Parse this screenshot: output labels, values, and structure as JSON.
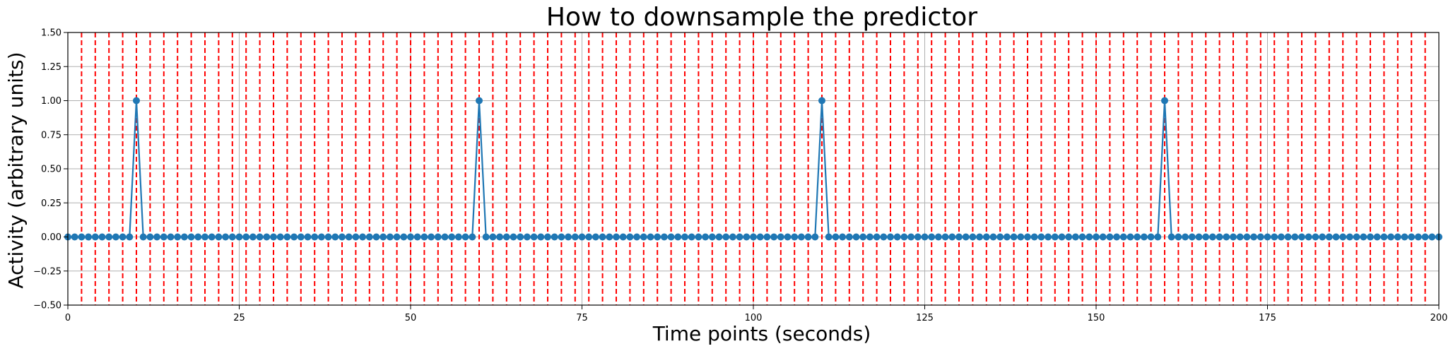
{
  "chart_data": {
    "type": "line",
    "title": "How to downsample the predictor",
    "xlabel": "Time points (seconds)",
    "ylabel": "Activity (arbitrary units)",
    "xlim": [
      0,
      200
    ],
    "ylim": [
      -0.5,
      1.5
    ],
    "x_ticks": [
      "0",
      "25",
      "50",
      "75",
      "100",
      "125",
      "150",
      "175",
      "200"
    ],
    "y_ticks": [
      "−0.50",
      "−0.25",
      "0.00",
      "0.25",
      "0.50",
      "0.75",
      "1.00",
      "1.25",
      "1.50"
    ],
    "grid": true,
    "series": [
      {
        "x_start": 0,
        "x_end": 200,
        "x_step": 1,
        "baseline": 0,
        "spikes": [
          {
            "x": 10,
            "y": 1.0
          },
          {
            "x": 60,
            "y": 1.0
          },
          {
            "x": 110,
            "y": 1.0
          },
          {
            "x": 160,
            "y": 1.0
          }
        ],
        "markers": true
      }
    ],
    "vertical_lines": {
      "x_start": 2,
      "x_end": 198,
      "x_step": 2,
      "style": "dashed"
    },
    "colors": {
      "series": "#1f77b4",
      "vertical_lines": "#ff0000",
      "grid": "#b0b0b0"
    }
  }
}
